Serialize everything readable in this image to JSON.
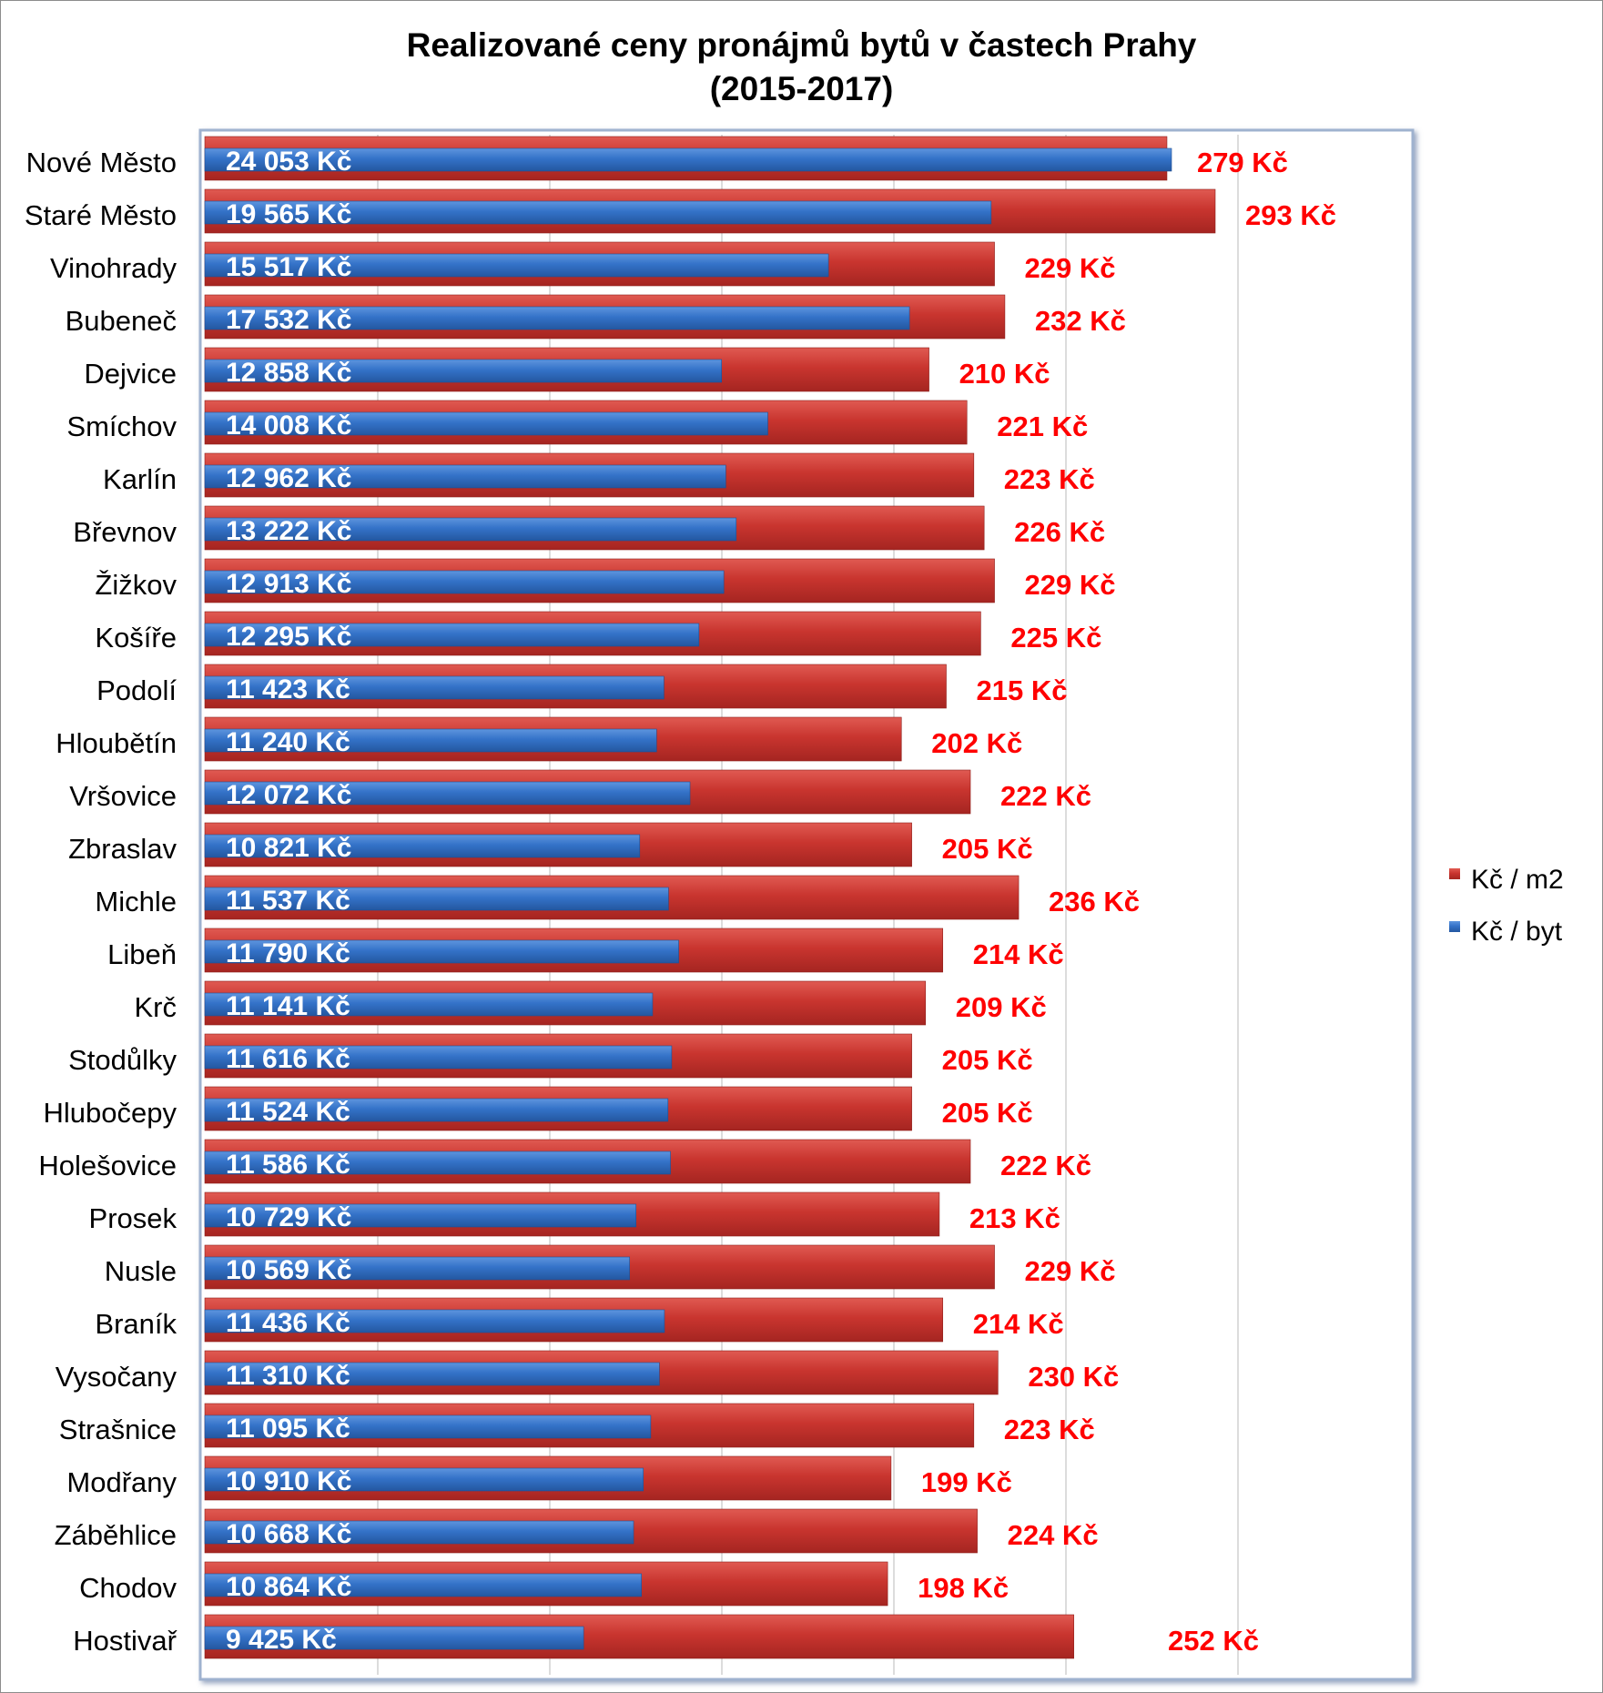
{
  "title": "Realizované ceny pronájmů bytů v častech Prahy",
  "subtitle": "(2015-2017)",
  "legend": {
    "m2_label": "Kč / m2",
    "byt_label": "Kč / byt"
  },
  "colors": {
    "m2": "#c0302b",
    "byt": "#2e6cc0",
    "m2_label": "#ff0000",
    "byt_label": "#ffffff"
  },
  "chart_data": {
    "type": "bar",
    "orientation": "horizontal",
    "title": "Realizované ceny pronájmů bytů v částech Prahy",
    "subtitle": "(2015-2017)",
    "categories": [
      "Nové Město",
      "Staré Město",
      "Vinohrady",
      "Bubeneč",
      "Dejvice",
      "Smíchov",
      "Karlín",
      "Břevnov",
      "Žižkov",
      "Košíře",
      "Podolí",
      "Hloubětín",
      "Vršovice",
      "Zbraslav",
      "Michle",
      "Libeň",
      "Krč",
      "Stodůlky",
      "Hlubočepy",
      "Holešovice",
      "Prosek",
      "Nusle",
      "Braník",
      "Vysočany",
      "Strašnice",
      "Modřany",
      "Záběhlice",
      "Chodov",
      "Hostivař"
    ],
    "series": [
      {
        "name": "Kč / m2",
        "values": [
          279,
          293,
          229,
          232,
          210,
          221,
          223,
          226,
          229,
          225,
          215,
          202,
          222,
          205,
          236,
          214,
          209,
          205,
          205,
          222,
          213,
          229,
          214,
          230,
          223,
          199,
          224,
          198,
          252
        ],
        "labels": [
          "279 Kč",
          "293 Kč",
          "229 Kč",
          "232 Kč",
          "210 Kč",
          "221 Kč",
          "223 Kč",
          "226 Kč",
          "229 Kč",
          "225 Kč",
          "215 Kč",
          "202 Kč",
          "222 Kč",
          "205 Kč",
          "236 Kč",
          "214 Kč",
          "209 Kč",
          "205 Kč",
          "205 Kč",
          "222 Kč",
          "213 Kč",
          "229 Kč",
          "214 Kč",
          "230 Kč",
          "223 Kč",
          "199 Kč",
          "224 Kč",
          "198 Kč",
          "252 Kč"
        ]
      },
      {
        "name": "Kč / byt",
        "values": [
          24053,
          19565,
          15517,
          17532,
          12858,
          14008,
          12962,
          13222,
          12913,
          12295,
          11423,
          11240,
          12072,
          10821,
          11537,
          11790,
          11141,
          11616,
          11524,
          11586,
          10729,
          10569,
          11436,
          11310,
          11095,
          10910,
          10668,
          10864,
          9425
        ],
        "labels": [
          "24 053 Kč",
          "19 565 Kč",
          "15 517 Kč",
          "17 532 Kč",
          "12 858 Kč",
          "14 008 Kč",
          "12 962 Kč",
          "13 222 Kč",
          "12 913 Kč",
          "12 295 Kč",
          "11 423 Kč",
          "11 240 Kč",
          "12 072 Kč",
          "10 821 Kč",
          "11 537 Kč",
          "11 790 Kč",
          "11 141 Kč",
          "11 616 Kč",
          "11 524 Kč",
          "11 586 Kč",
          "10 729 Kč",
          "10 569 Kč",
          "11 436 Kč",
          "11 310 Kč",
          "11 095 Kč",
          "10 910 Kč",
          "10 668 Kč",
          "10 864 Kč",
          "9 425 Kč"
        ]
      }
    ],
    "axis_hidden": true,
    "grid": true,
    "legend_position": "right"
  }
}
